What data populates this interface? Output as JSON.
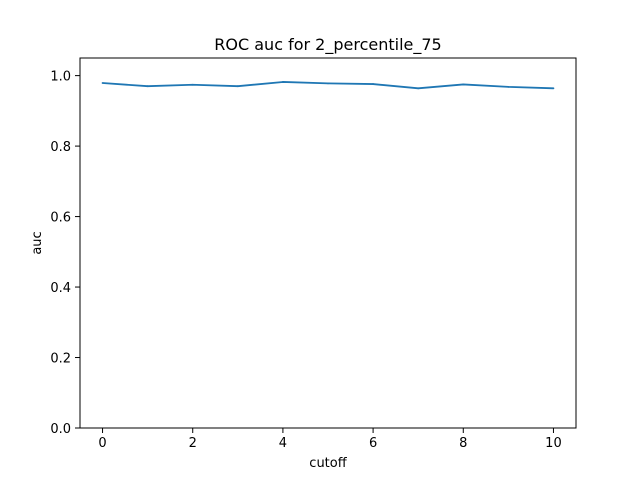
{
  "chart_data": {
    "type": "line",
    "title": "ROC auc for 2_percentile_75",
    "xlabel": "cutoff",
    "ylabel": "auc",
    "xlim": [
      -0.5,
      10.5
    ],
    "ylim": [
      0.0,
      1.05
    ],
    "xticks": [
      0,
      2,
      4,
      6,
      8,
      10
    ],
    "xtick_labels": [
      "0",
      "2",
      "4",
      "6",
      "8",
      "10"
    ],
    "yticks": [
      0.0,
      0.2,
      0.4,
      0.6,
      0.8,
      1.0
    ],
    "ytick_labels": [
      "0.0",
      "0.2",
      "0.4",
      "0.6",
      "0.8",
      "1.0"
    ],
    "grid": false,
    "series": [
      {
        "color": "#1f77b4",
        "x": [
          0,
          1,
          2,
          3,
          4,
          5,
          6,
          7,
          8,
          9,
          10
        ],
        "y": [
          0.979,
          0.97,
          0.974,
          0.97,
          0.982,
          0.978,
          0.976,
          0.964,
          0.975,
          0.968,
          0.964
        ]
      }
    ]
  }
}
